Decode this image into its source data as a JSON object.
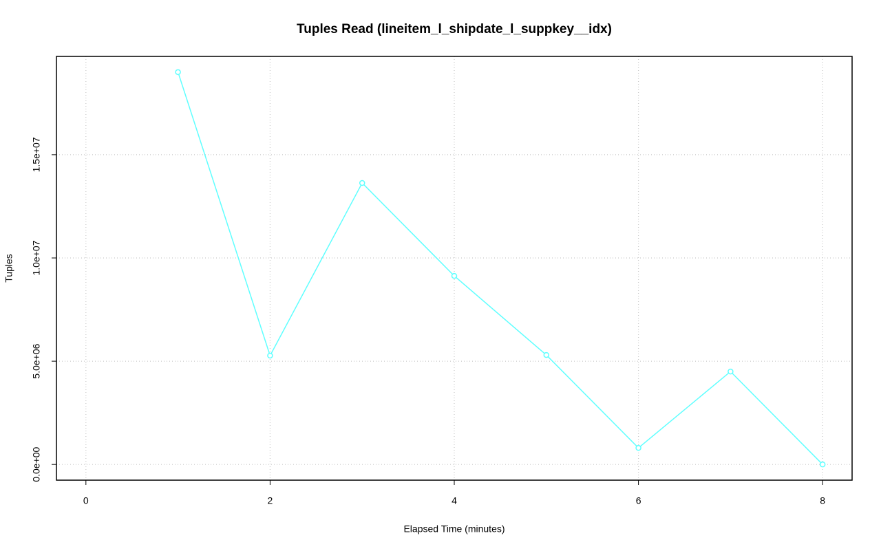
{
  "chart_data": {
    "type": "line",
    "title": "Tuples Read (lineitem_l_shipdate_l_suppkey__idx)",
    "x_label": "Elapsed Time (minutes)",
    "y_label": "Tuples",
    "x": [
      1,
      2,
      3,
      4,
      5,
      6,
      7,
      8
    ],
    "series": [
      {
        "color": "#5fffff",
        "values": [
          19000000,
          5270000,
          13630000,
          9130000,
          5300000,
          800000,
          4500000,
          0
        ]
      }
    ],
    "xlim": [
      -0.32,
      8.32
    ],
    "ylim": [
      -760000,
      19760000
    ],
    "xticks": [
      0,
      2,
      4,
      6,
      8
    ],
    "yticks": [
      {
        "value": 0,
        "label": "0.0e+00"
      },
      {
        "value": 5000000,
        "label": "5.0e+06"
      },
      {
        "value": 10000000,
        "label": "1.0e+07"
      },
      {
        "value": 15000000,
        "label": "1.5e+07"
      }
    ],
    "grid": true
  }
}
